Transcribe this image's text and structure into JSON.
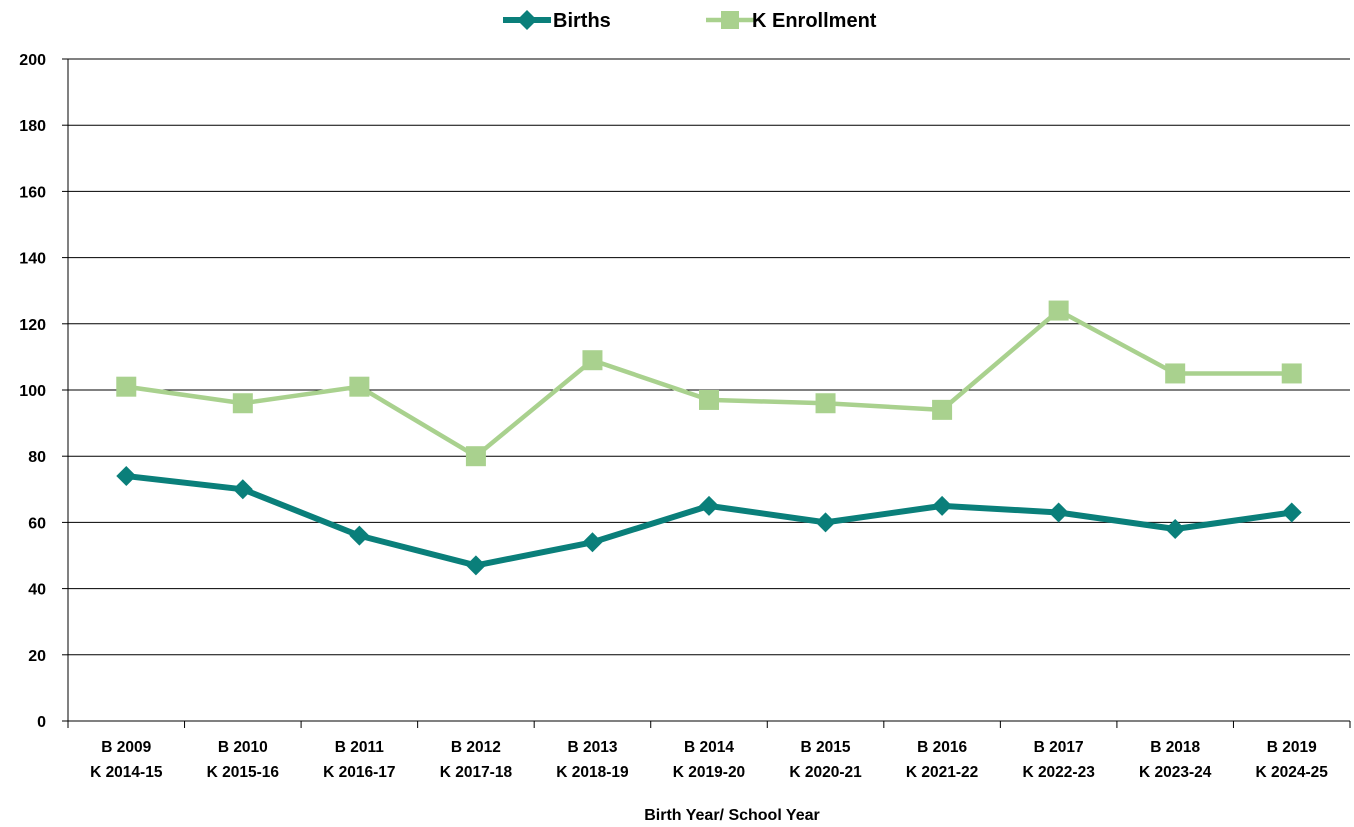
{
  "chart_data": {
    "type": "line",
    "title": "",
    "xlabel": "Birth Year/ School Year",
    "ylabel": "",
    "ylim": [
      0,
      200
    ],
    "yticks": [
      0,
      20,
      40,
      60,
      80,
      100,
      120,
      140,
      160,
      180,
      200
    ],
    "grid": "horizontal",
    "legend_position": "top-center",
    "categories": [
      [
        "B 2009",
        "K 2014-15"
      ],
      [
        "B 2010",
        "K 2015-16"
      ],
      [
        "B 2011",
        "K 2016-17"
      ],
      [
        "B 2012",
        "K 2017-18"
      ],
      [
        "B 2013",
        "K 2018-19"
      ],
      [
        "B 2014",
        "K 2019-20"
      ],
      [
        "B 2015",
        "K 2020-21"
      ],
      [
        "B 2016",
        "K 2021-22"
      ],
      [
        "B 2017",
        "K 2022-23"
      ],
      [
        "B 2018",
        "K 2023-24"
      ],
      [
        "B 2019",
        "K 2024-25"
      ]
    ],
    "series": [
      {
        "name": "Births",
        "marker": "diamond",
        "color": "#0a7f7a",
        "values": [
          74,
          70,
          56,
          47,
          54,
          65,
          60,
          65,
          63,
          58,
          63
        ]
      },
      {
        "name": "K Enrollment",
        "marker": "square",
        "color": "#a9d18e",
        "values": [
          101,
          96,
          101,
          80,
          109,
          97,
          96,
          94,
          124,
          105,
          105
        ]
      }
    ]
  }
}
